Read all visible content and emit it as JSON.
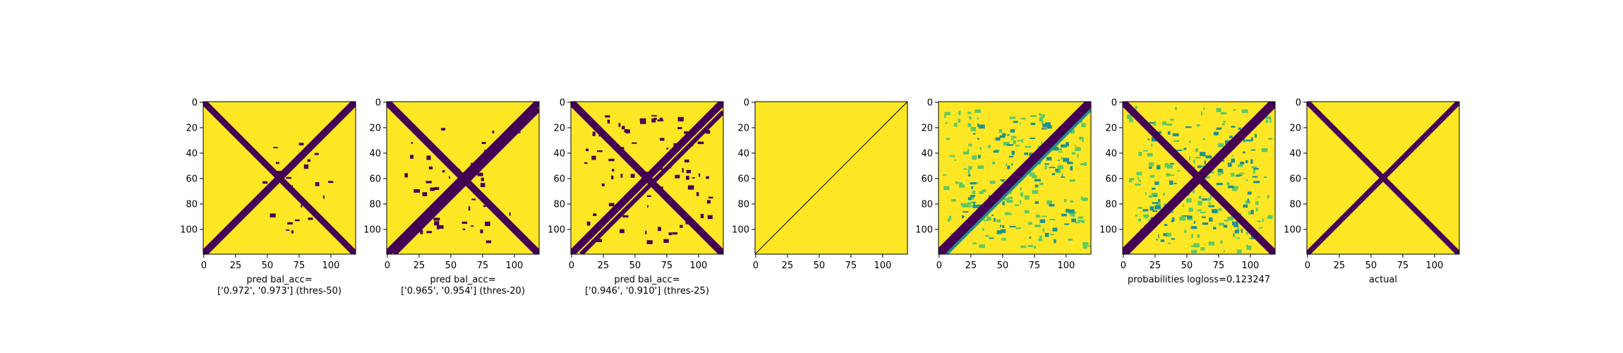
{
  "colors": {
    "background": "#fde725",
    "foreground": "#440154",
    "mid": "#21918c",
    "light": "#5ec962"
  },
  "chart_data": [
    {
      "type": "heatmap",
      "title": "",
      "xlabel": "pred bal_acc=",
      "xlabel_line2": "['0.972', '0.973'] (thres-50)",
      "xticks": [
        0,
        25,
        50,
        75,
        100
      ],
      "yticks": [
        0,
        20,
        40,
        60,
        80,
        100
      ],
      "xlim": [
        0,
        120
      ],
      "ylim": [
        120,
        0
      ],
      "values": [
        0,
        1
      ],
      "colormap": "viridis"
    },
    {
      "type": "heatmap",
      "title": "",
      "xlabel": "pred bal_acc=",
      "xlabel_line2": "['0.965', '0.954'] (thres-20)",
      "xticks": [
        0,
        25,
        50,
        75,
        100
      ],
      "yticks": [
        0,
        20,
        40,
        60,
        80,
        100
      ],
      "xlim": [
        0,
        120
      ],
      "ylim": [
        120,
        0
      ],
      "values": [
        0,
        1
      ],
      "colormap": "viridis"
    },
    {
      "type": "heatmap",
      "title": "",
      "xlabel": "pred bal_acc=",
      "xlabel_line2": "['0.946', '0.910'] (thres-25)",
      "xticks": [
        0,
        25,
        50,
        75,
        100
      ],
      "yticks": [
        0,
        20,
        40,
        60,
        80,
        100
      ],
      "xlim": [
        0,
        120
      ],
      "ylim": [
        120,
        0
      ],
      "values": [
        0,
        1
      ],
      "colormap": "viridis"
    },
    {
      "type": "heatmap",
      "title": "",
      "xlabel": "",
      "xlabel_line2": "",
      "xticks": [
        0,
        25,
        50,
        75,
        100
      ],
      "yticks": [
        0,
        20,
        40,
        60,
        80,
        100
      ],
      "xlim": [
        0,
        120
      ],
      "ylim": [
        120,
        0
      ],
      "values": [
        0,
        1
      ],
      "colormap": "viridis"
    },
    {
      "type": "heatmap",
      "title": "",
      "xlabel": "",
      "xlabel_line2": "",
      "xticks": [
        0,
        25,
        50,
        75,
        100
      ],
      "yticks": [
        0,
        20,
        40,
        60,
        80,
        100
      ],
      "xlim": [
        0,
        120
      ],
      "ylim": [
        120,
        0
      ],
      "values": [
        0,
        1
      ],
      "colormap": "viridis"
    },
    {
      "type": "heatmap",
      "title": "",
      "xlabel": "probabilities logloss=0.123247",
      "xlabel_line2": "",
      "xticks": [
        0,
        25,
        50,
        75,
        100
      ],
      "yticks": [
        0,
        20,
        40,
        60,
        80,
        100
      ],
      "xlim": [
        0,
        120
      ],
      "ylim": [
        120,
        0
      ],
      "values": [
        0,
        1
      ],
      "colormap": "viridis"
    },
    {
      "type": "heatmap",
      "title": "",
      "xlabel": "actual",
      "xlabel_line2": "",
      "xticks": [
        0,
        25,
        50,
        75,
        100
      ],
      "yticks": [
        0,
        20,
        40,
        60,
        80,
        100
      ],
      "xlim": [
        0,
        120
      ],
      "ylim": [
        120,
        0
      ],
      "values": [
        0,
        1
      ],
      "colormap": "viridis"
    }
  ]
}
